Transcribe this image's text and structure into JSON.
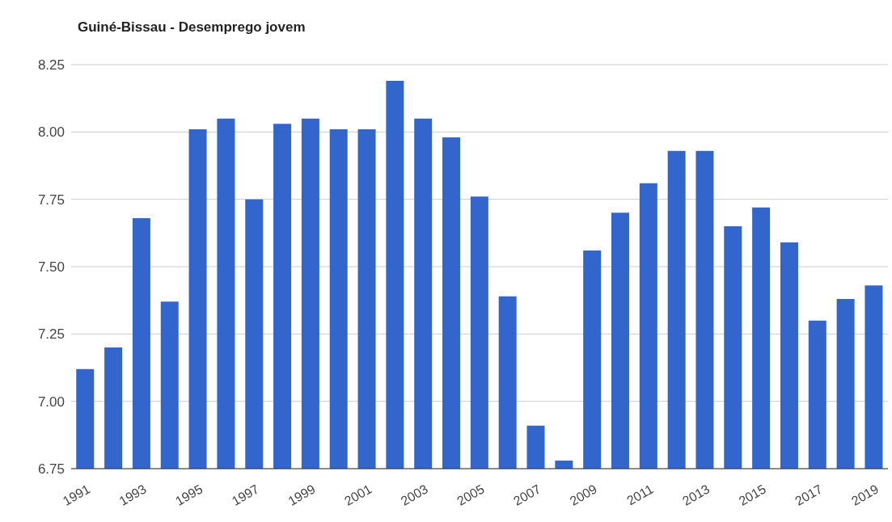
{
  "chart_data": {
    "type": "bar",
    "title": "Guiné-Bissau - Desemprego jovem",
    "categories": [
      "1991",
      null,
      "1993",
      null,
      "1995",
      null,
      "1997",
      null,
      "1999",
      null,
      "2001",
      null,
      "2003",
      null,
      "2005",
      null,
      "2007",
      null,
      "2009",
      null,
      "2011",
      null,
      "2013",
      null,
      "2015",
      null,
      "2017",
      null,
      "2019"
    ],
    "values": [
      7.12,
      7.2,
      7.68,
      7.37,
      8.01,
      8.05,
      7.75,
      8.03,
      8.05,
      8.01,
      8.01,
      8.19,
      8.05,
      7.98,
      7.76,
      7.39,
      6.91,
      6.78,
      7.56,
      7.7,
      7.81,
      7.93,
      7.93,
      7.65,
      7.72,
      7.59,
      7.3,
      7.38,
      7.43
    ],
    "color": "#3366cc",
    "ylim": [
      6.75,
      8.25
    ],
    "yticks": [
      6.75,
      {
        "value": 7,
        "label": "7.00"
      },
      7.25,
      {
        "value": 7.5,
        "label": "7.50"
      },
      7.75,
      {
        "value": 8,
        "label": "8.00"
      },
      8.25
    ],
    "grid": "y"
  }
}
